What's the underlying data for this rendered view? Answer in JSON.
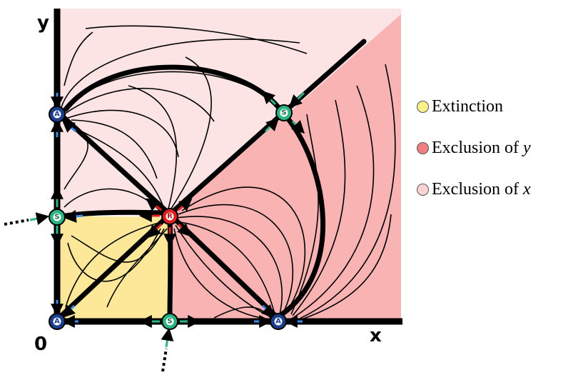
{
  "axes": {
    "y_label": "y",
    "x_label": "x",
    "origin_label": "0"
  },
  "nodes": [
    {
      "id": "origin",
      "letter": "A"
    },
    {
      "id": "y-axis-attractor",
      "letter": "A"
    },
    {
      "id": "x-axis-attractor",
      "letter": "A"
    },
    {
      "id": "y-axis-saddle",
      "letter": "S"
    },
    {
      "id": "x-axis-saddle",
      "letter": "S"
    },
    {
      "id": "diagonal-saddle",
      "letter": "S"
    },
    {
      "id": "repeller",
      "letter": "R"
    }
  ],
  "legend": [
    {
      "text": "Extinction",
      "var": "",
      "color": "#fbf18a"
    },
    {
      "text": "Exclusion of ",
      "var": "y",
      "color": "#f08080"
    },
    {
      "text": "Exclusion of ",
      "var": "x",
      "color": "#fcd3d3"
    }
  ],
  "colors": {
    "extinction_region": "#fde89a",
    "exclusion_y_region": "#f9b3b3",
    "exclusion_x_region": "#fde4e4",
    "attractor_node": "#1b3f8f",
    "saddle_node": "#2bb584",
    "repeller_node": "#e02020",
    "attractor_arrow": "#3a8df0",
    "saddle_arrow": "#2fb58a",
    "repeller_arrow": "#e02020"
  }
}
